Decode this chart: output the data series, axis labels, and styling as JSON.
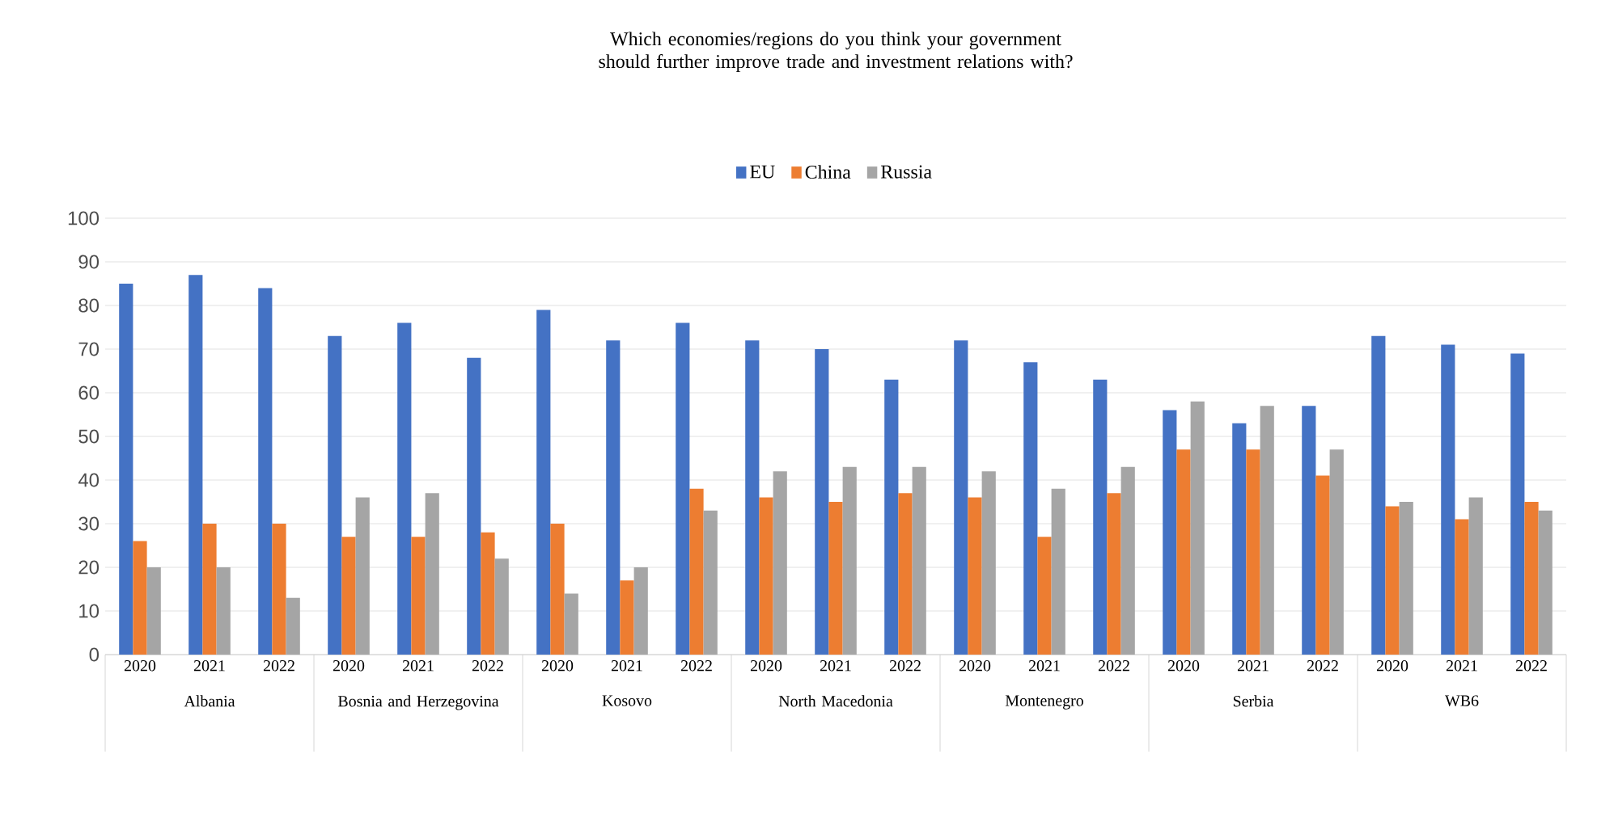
{
  "chart_data": {
    "type": "bar",
    "title": "Which economies/regions do you think your government should further improve trade and investment relations with?",
    "categories": [
      "2020",
      "2021",
      "2022",
      "2020",
      "2021",
      "2022",
      "2020",
      "2021",
      "2022",
      "2020",
      "2021",
      "2022",
      "2020",
      "2021",
      "2022",
      "2020",
      "2021",
      "2022",
      "2020",
      "2021",
      "2022"
    ],
    "series": [
      {
        "name": "EU",
        "color": "#4472c4",
        "values": [
          85,
          87,
          84,
          73,
          76,
          68,
          79,
          72,
          76,
          72,
          70,
          63,
          72,
          67,
          63,
          56,
          53,
          57,
          73,
          71,
          69
        ]
      },
      {
        "name": "China",
        "color": "#ed7d31",
        "values": [
          26,
          30,
          30,
          27,
          27,
          28,
          30,
          17,
          38,
          36,
          35,
          37,
          36,
          27,
          37,
          47,
          47,
          41,
          34,
          31,
          35
        ]
      },
      {
        "name": "Russia",
        "color": "#a5a5a5",
        "values": [
          20,
          20,
          13,
          36,
          37,
          22,
          14,
          20,
          33,
          42,
          43,
          43,
          42,
          38,
          43,
          58,
          57,
          47,
          35,
          36,
          33
        ]
      }
    ],
    "annotations": [
      "Albania",
      "Bosnia and Herzegovina",
      "Kosovo",
      "North Macedonia",
      "Montenegro",
      "Serbia",
      "WB6"
    ],
    "ylim": [
      0,
      100
    ],
    "yticks": [
      0,
      10,
      20,
      30,
      40,
      50,
      60,
      70,
      80,
      90,
      100
    ],
    "grid": "y",
    "legend": "top"
  }
}
